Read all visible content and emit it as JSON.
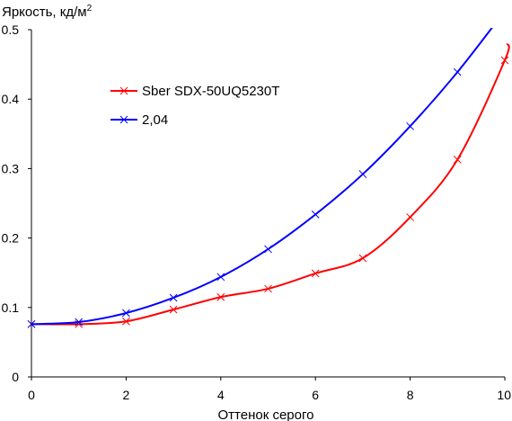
{
  "chart_data": {
    "type": "line",
    "title": "",
    "xlabel": "Оттенок серого",
    "ylabel": "Яркость, кд/м",
    "ylabel_superscript": "2",
    "xlim": [
      0,
      10
    ],
    "ylim": [
      0,
      0.5
    ],
    "x_ticks": [
      0,
      2,
      4,
      6,
      8,
      10
    ],
    "x_tick_labels": [
      "0",
      "2",
      "4",
      "6",
      "8",
      "10"
    ],
    "y_ticks": [
      0,
      0.1,
      0.2,
      0.3,
      0.4,
      0.5
    ],
    "y_tick_labels": [
      "0",
      "0.1",
      "0.2",
      "0.3",
      "0.4",
      "0.5"
    ],
    "grid": false,
    "legend_position": "upper-left-inside",
    "marker": "x",
    "x": [
      0,
      1,
      2,
      3,
      4,
      5,
      6,
      7,
      8,
      9,
      10
    ],
    "series": [
      {
        "name": "Sber SDX-50UQ5230T",
        "color": "#ff0000",
        "values": [
          0.076,
          0.076,
          0.08,
          0.097,
          0.115,
          0.127,
          0.149,
          0.171,
          0.23,
          0.313,
          0.456
        ],
        "line_extends_to": [
          10.05,
          0.48
        ]
      },
      {
        "name": "2,04",
        "color": "#0000ff",
        "values": [
          0.076,
          0.079,
          0.092,
          0.114,
          0.144,
          0.184,
          0.234,
          0.292,
          0.361,
          0.439,
          0.527
        ]
      }
    ]
  }
}
